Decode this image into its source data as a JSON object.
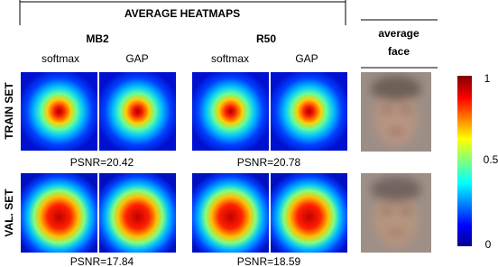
{
  "header": {
    "title": "AVERAGE HEATMAPS",
    "face_title": [
      "average",
      "face"
    ]
  },
  "models": [
    {
      "name": "MB2",
      "methods": [
        "softmax",
        "GAP"
      ]
    },
    {
      "name": "R50",
      "methods": [
        "softmax",
        "GAP"
      ]
    }
  ],
  "rows": [
    {
      "label": "TRAIN SET",
      "psnr": [
        "PSNR=20.42",
        "PSNR=20.78"
      ]
    },
    {
      "label": "VAL. SET",
      "psnr": [
        "PSNR=17.84",
        "PSNR=18.59"
      ]
    }
  ],
  "colorbar": {
    "ticks": [
      1,
      0.5,
      0
    ]
  }
}
